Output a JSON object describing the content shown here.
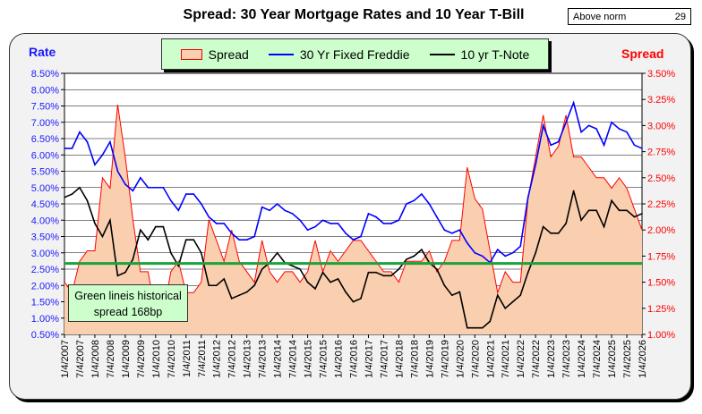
{
  "header": {
    "title": "Spread:  30 Year Mortgage Rates and 10 Year T-Bill",
    "norm_label": "Above norm",
    "norm_value": "29"
  },
  "chart_data": {
    "type": "line",
    "title": "Spread:  30 Year Mortgage Rates and 10 Year T-Bill",
    "ylabel_left": "Rate",
    "ylabel_right": "Spread",
    "ylim_left": [
      0.5,
      8.5
    ],
    "ylim_right": [
      1.0,
      3.5
    ],
    "yticks_left": [
      "0.50%",
      "1.00%",
      "1.50%",
      "2.00%",
      "2.50%",
      "3.00%",
      "3.50%",
      "4.00%",
      "4.50%",
      "5.00%",
      "5.50%",
      "6.00%",
      "6.50%",
      "7.00%",
      "7.50%",
      "8.00%",
      "8.50%"
    ],
    "yticks_right": [
      "1.00%",
      "1.25%",
      "1.50%",
      "1.75%",
      "2.00%",
      "2.25%",
      "2.50%",
      "2.75%",
      "3.00%",
      "3.25%",
      "3.50%"
    ],
    "xticks": [
      "1/4/2007",
      "7/4/2007",
      "1/4/2008",
      "7/4/2008",
      "1/4/2009",
      "7/4/2009",
      "1/4/2010",
      "7/4/2010",
      "1/4/2011",
      "7/4/2011",
      "1/4/2012",
      "7/4/2012",
      "1/4/2013",
      "7/4/2013",
      "1/4/2014",
      "7/4/2014",
      "1/4/2015",
      "7/4/2015",
      "1/4/2016",
      "7/4/2016",
      "1/4/2017",
      "7/4/2017",
      "1/4/2018",
      "7/4/2018",
      "1/4/2019",
      "7/4/2019",
      "1/4/2020",
      "7/4/2020",
      "1/4/2021",
      "7/4/2021",
      "1/4/2022",
      "7/4/2022",
      "1/4/2023",
      "7/4/2023",
      "1/4/2024",
      "7/4/2024",
      "1/4/2025",
      "7/4/2025",
      "1/4/2026"
    ],
    "x_start_year": 2007.0,
    "x_step_years": 0.25,
    "legend": [
      "Spread",
      "30 Yr Fixed Freddie",
      "10 yr T-Note"
    ],
    "legend_placement": "top-center",
    "series": [
      {
        "name": "30 Yr Fixed Freddie",
        "axis": "left",
        "color": "#0000ff",
        "values": [
          6.2,
          6.2,
          6.7,
          6.4,
          5.7,
          6.0,
          6.4,
          5.5,
          5.1,
          4.9,
          5.3,
          5.0,
          5.0,
          5.0,
          4.6,
          4.3,
          4.8,
          4.8,
          4.5,
          4.1,
          3.9,
          3.9,
          3.6,
          3.4,
          3.4,
          3.5,
          4.4,
          4.3,
          4.5,
          4.3,
          4.2,
          4.0,
          3.7,
          3.8,
          4.0,
          3.9,
          3.9,
          3.6,
          3.4,
          3.5,
          4.2,
          4.1,
          3.9,
          3.9,
          4.0,
          4.5,
          4.6,
          4.8,
          4.5,
          4.1,
          3.7,
          3.6,
          3.7,
          3.3,
          3.0,
          2.9,
          2.7,
          3.1,
          2.9,
          3.0,
          3.2,
          4.7,
          5.7,
          6.9,
          6.3,
          6.4,
          7.0,
          7.6,
          6.7,
          6.9,
          6.8,
          6.3,
          7.0,
          6.8,
          6.7,
          6.3,
          6.2
        ]
      },
      {
        "name": "10 yr T-Note",
        "axis": "left",
        "color": "#000000",
        "values": [
          4.7,
          4.8,
          5.0,
          4.6,
          3.9,
          3.5,
          4.0,
          2.3,
          2.4,
          2.8,
          3.7,
          3.4,
          3.8,
          3.8,
          3.0,
          2.6,
          3.4,
          3.4,
          3.0,
          2.0,
          2.0,
          2.2,
          1.6,
          1.7,
          1.8,
          2.0,
          2.5,
          2.7,
          3.0,
          2.7,
          2.6,
          2.5,
          2.1,
          1.9,
          2.4,
          2.1,
          2.2,
          1.8,
          1.5,
          1.6,
          2.4,
          2.4,
          2.3,
          2.3,
          2.5,
          2.8,
          2.9,
          3.1,
          2.7,
          2.5,
          2.0,
          1.7,
          1.8,
          0.7,
          0.7,
          0.7,
          0.9,
          1.7,
          1.3,
          1.5,
          1.7,
          2.4,
          3.0,
          3.8,
          3.6,
          3.6,
          3.9,
          4.9,
          4.0,
          4.3,
          4.3,
          3.8,
          4.6,
          4.3,
          4.3,
          4.1,
          4.2
        ]
      },
      {
        "name": "Spread",
        "axis": "right",
        "type": "area",
        "color": "#ff0000",
        "fill": "#f9cfb0",
        "values": [
          1.5,
          1.4,
          1.7,
          1.8,
          1.8,
          2.5,
          2.4,
          3.2,
          2.7,
          2.1,
          1.6,
          1.6,
          1.2,
          1.2,
          1.6,
          1.7,
          1.4,
          1.4,
          1.5,
          2.1,
          1.9,
          1.7,
          2.0,
          1.7,
          1.6,
          1.5,
          1.9,
          1.6,
          1.5,
          1.6,
          1.6,
          1.5,
          1.6,
          1.9,
          1.6,
          1.8,
          1.7,
          1.8,
          1.9,
          1.9,
          1.8,
          1.7,
          1.6,
          1.6,
          1.5,
          1.7,
          1.7,
          1.7,
          1.8,
          1.6,
          1.7,
          1.9,
          1.9,
          2.6,
          2.3,
          2.2,
          1.8,
          1.4,
          1.6,
          1.5,
          1.5,
          2.3,
          2.7,
          3.1,
          2.7,
          2.8,
          3.1,
          2.7,
          2.7,
          2.6,
          2.5,
          2.5,
          2.4,
          2.5,
          2.4,
          2.2,
          2.0
        ]
      }
    ],
    "reference_line": {
      "axis": "right",
      "value": 1.68,
      "color": "#1aa33a"
    },
    "annotation": "Green lineis historical spread 168bp"
  }
}
